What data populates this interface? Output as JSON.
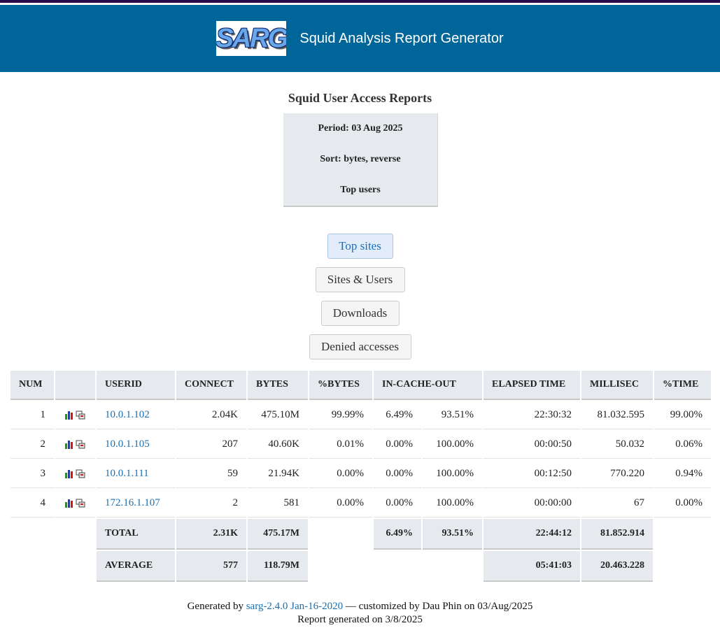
{
  "header": {
    "logo_text": "SARG",
    "app_title": "Squid Analysis Report Generator"
  },
  "report": {
    "title": "Squid User Access Reports",
    "period": "Period: 03 Aug 2025",
    "sort": "Sort: bytes, reverse",
    "section": "Top users"
  },
  "nav": {
    "top_sites": "Top sites",
    "sites_users": "Sites & Users",
    "downloads": "Downloads",
    "denied": "Denied accesses"
  },
  "table": {
    "headers": {
      "num": "NUM",
      "userid": "USERID",
      "connect": "CONNECT",
      "bytes": "BYTES",
      "pct_bytes": "%BYTES",
      "in_cache_out": "IN-CACHE-OUT",
      "elapsed": "ELAPSED TIME",
      "millisec": "MILLISEC",
      "pct_time": "%TIME"
    },
    "rows": [
      {
        "num": "1",
        "userid": "10.0.1.102",
        "connect": "2.04K",
        "bytes": "475.10M",
        "pct_bytes": "99.99%",
        "in": "6.49%",
        "out": "93.51%",
        "elapsed": "22:30:32",
        "millisec": "81.032.595",
        "pct_time": "99.00%"
      },
      {
        "num": "2",
        "userid": "10.0.1.105",
        "connect": "207",
        "bytes": "40.60K",
        "pct_bytes": "0.01%",
        "in": "0.00%",
        "out": "100.00%",
        "elapsed": "00:00:50",
        "millisec": "50.032",
        "pct_time": "0.06%"
      },
      {
        "num": "3",
        "userid": "10.0.1.111",
        "connect": "59",
        "bytes": "21.94K",
        "pct_bytes": "0.00%",
        "in": "0.00%",
        "out": "100.00%",
        "elapsed": "00:12:50",
        "millisec": "770.220",
        "pct_time": "0.94%"
      },
      {
        "num": "4",
        "userid": "172.16.1.107",
        "connect": "2",
        "bytes": "581",
        "pct_bytes": "0.00%",
        "in": "0.00%",
        "out": "100.00%",
        "elapsed": "00:00:00",
        "millisec": "67",
        "pct_time": "0.00%"
      }
    ],
    "total": {
      "label": "TOTAL",
      "connect": "2.31K",
      "bytes": "475.17M",
      "in": "6.49%",
      "out": "93.51%",
      "elapsed": "22:44:12",
      "millisec": "81.852.914"
    },
    "average": {
      "label": "AVERAGE",
      "connect": "577",
      "bytes": "118.79M",
      "elapsed": "05:41:03",
      "millisec": "20.463.228"
    }
  },
  "footer": {
    "generated_by_prefix": "Generated by",
    "sarg_version": "sarg-2.4.0 Jan-16-2020",
    "customized": "— customized by Dau Phin on 03/Aug/2025",
    "report_date": "Report generated on 3/8/2025"
  },
  "colors": {
    "header_bg": "#006699",
    "top_stripe": "#2a0a4a",
    "cell_bg": "#e6e9ed",
    "link": "#1a6fb0"
  },
  "icons": [
    "bar-chart-icon",
    "copy-icon"
  ]
}
